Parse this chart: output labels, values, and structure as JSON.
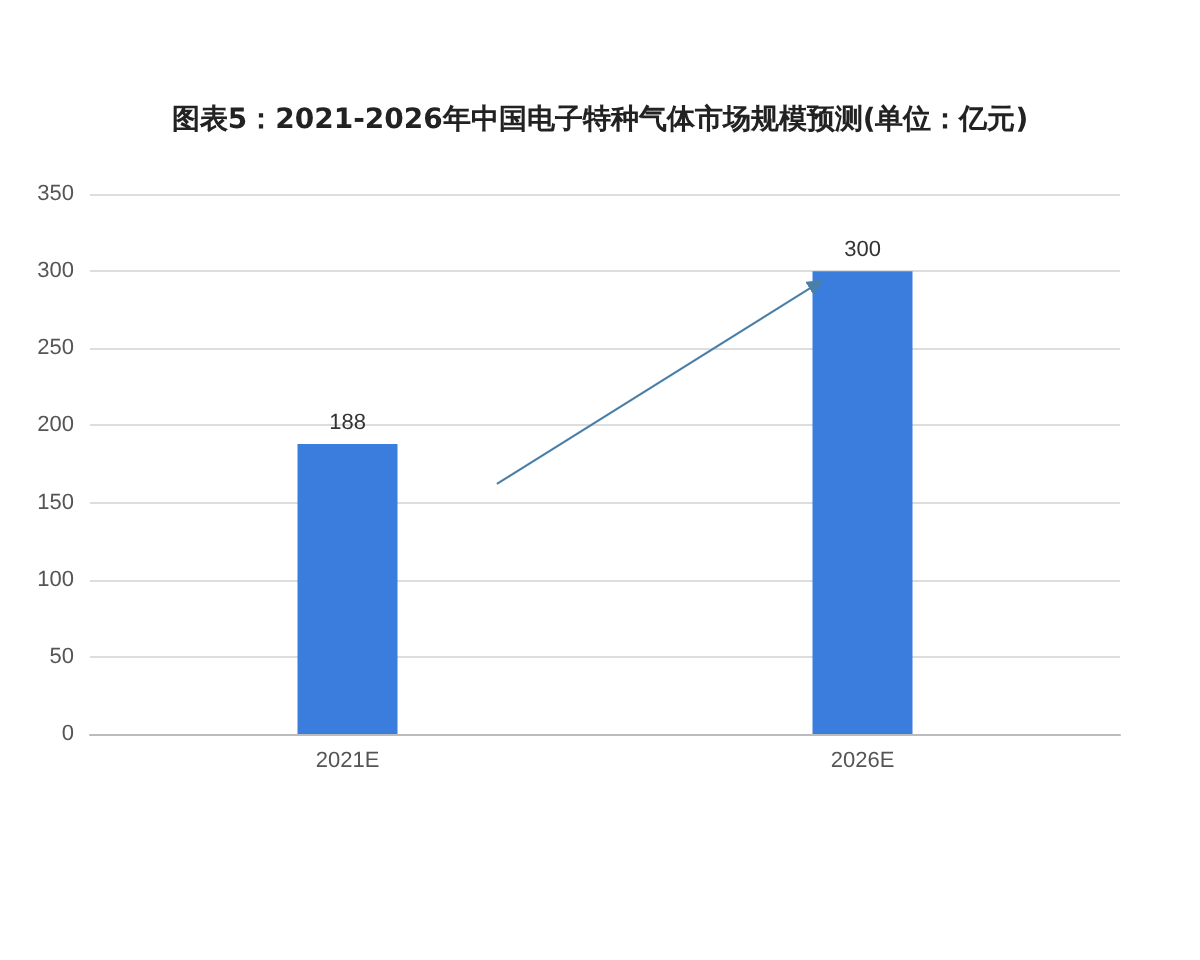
{
  "chart_data": {
    "type": "bar",
    "title": "图表5：2021-2026年中国电子特种气体市场规模预测(单位：亿元)",
    "categories": [
      "2021E",
      "2026E"
    ],
    "values": [
      188,
      300
    ],
    "color": "#3b7ddd",
    "ylim": [
      0,
      350
    ],
    "yticks": [
      0,
      50,
      100,
      150,
      200,
      250,
      300,
      350
    ],
    "grid": "y",
    "data_labels": true
  }
}
